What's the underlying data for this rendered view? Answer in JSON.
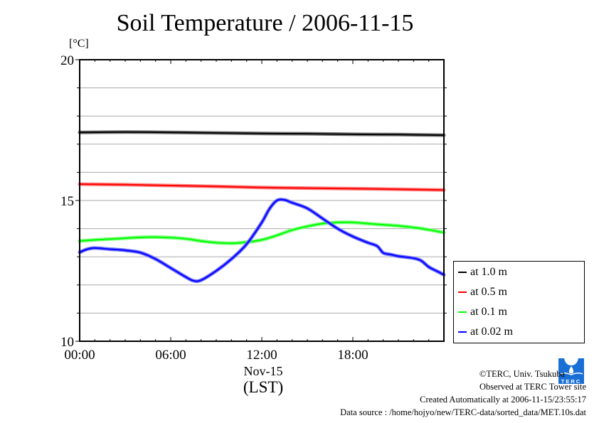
{
  "chart_data": {
    "type": "line",
    "title": "Soil Temperature / 2006-11-15",
    "ylabel": "[°C]",
    "xlabel_date": "Nov-15",
    "xlabel_tz": "(LST)",
    "ylim": [
      10,
      20
    ],
    "xlim_hours": [
      0,
      24
    ],
    "y_ticks": [
      10,
      15,
      20
    ],
    "y_grid_step": 1,
    "x_ticks": [
      {
        "hour": 0,
        "label": "00:00"
      },
      {
        "hour": 6,
        "label": "06:00"
      },
      {
        "hour": 12,
        "label": "12:00"
      },
      {
        "hour": 18,
        "label": "18:00"
      }
    ],
    "grid": true,
    "legend_position": "right",
    "series": [
      {
        "name": "at 1.0 m",
        "color": "#000000",
        "x": [
          0,
          3,
          6,
          9,
          12,
          15,
          18,
          21,
          24
        ],
        "y": [
          17.42,
          17.43,
          17.42,
          17.4,
          17.38,
          17.37,
          17.35,
          17.34,
          17.32
        ]
      },
      {
        "name": "at 0.5 m",
        "color": "#ff0000",
        "x": [
          0,
          3,
          6,
          9,
          12,
          15,
          18,
          21,
          24
        ],
        "y": [
          15.58,
          15.56,
          15.53,
          15.5,
          15.46,
          15.44,
          15.42,
          15.4,
          15.37
        ]
      },
      {
        "name": "at 0.1 m",
        "color": "#00ff00",
        "x": [
          0,
          1,
          2,
          3,
          4,
          5,
          6,
          7,
          8,
          9,
          10,
          11,
          12,
          13,
          14,
          15,
          16,
          17,
          18,
          19,
          20,
          21,
          22,
          23,
          24
        ],
        "y": [
          13.56,
          13.6,
          13.63,
          13.66,
          13.69,
          13.7,
          13.68,
          13.64,
          13.56,
          13.5,
          13.48,
          13.52,
          13.6,
          13.76,
          13.95,
          14.08,
          14.18,
          14.22,
          14.22,
          14.18,
          14.14,
          14.1,
          14.04,
          13.96,
          13.86
        ]
      },
      {
        "name": "at 0.02 m",
        "color": "#0000ff",
        "x": [
          0,
          0.5,
          1,
          2,
          3,
          4,
          5,
          6,
          7,
          7.5,
          8,
          9,
          10,
          11,
          12,
          12.5,
          13,
          13.5,
          14,
          15,
          16,
          17,
          18,
          19,
          19.6,
          20,
          20.5,
          21,
          22,
          22.5,
          23,
          23.5,
          24
        ],
        "y": [
          13.16,
          13.27,
          13.31,
          13.27,
          13.23,
          13.15,
          12.92,
          12.6,
          12.28,
          12.15,
          12.17,
          12.5,
          12.92,
          13.45,
          14.22,
          14.7,
          15.0,
          15.02,
          14.92,
          14.72,
          14.36,
          14.0,
          13.72,
          13.5,
          13.38,
          13.14,
          13.08,
          13.02,
          12.95,
          12.86,
          12.64,
          12.5,
          12.36
        ]
      }
    ]
  },
  "credits": {
    "copyright": "©TERC, Univ. Tsukuba",
    "observed": "Observed at TERC Tower site",
    "created": "Created Automatically at 2006-11-15/23:55:17",
    "source": "Data source : /home/hojyo/new/TERC-data/sorted_data/MET.10s.dat",
    "logo_text": "TERC"
  }
}
